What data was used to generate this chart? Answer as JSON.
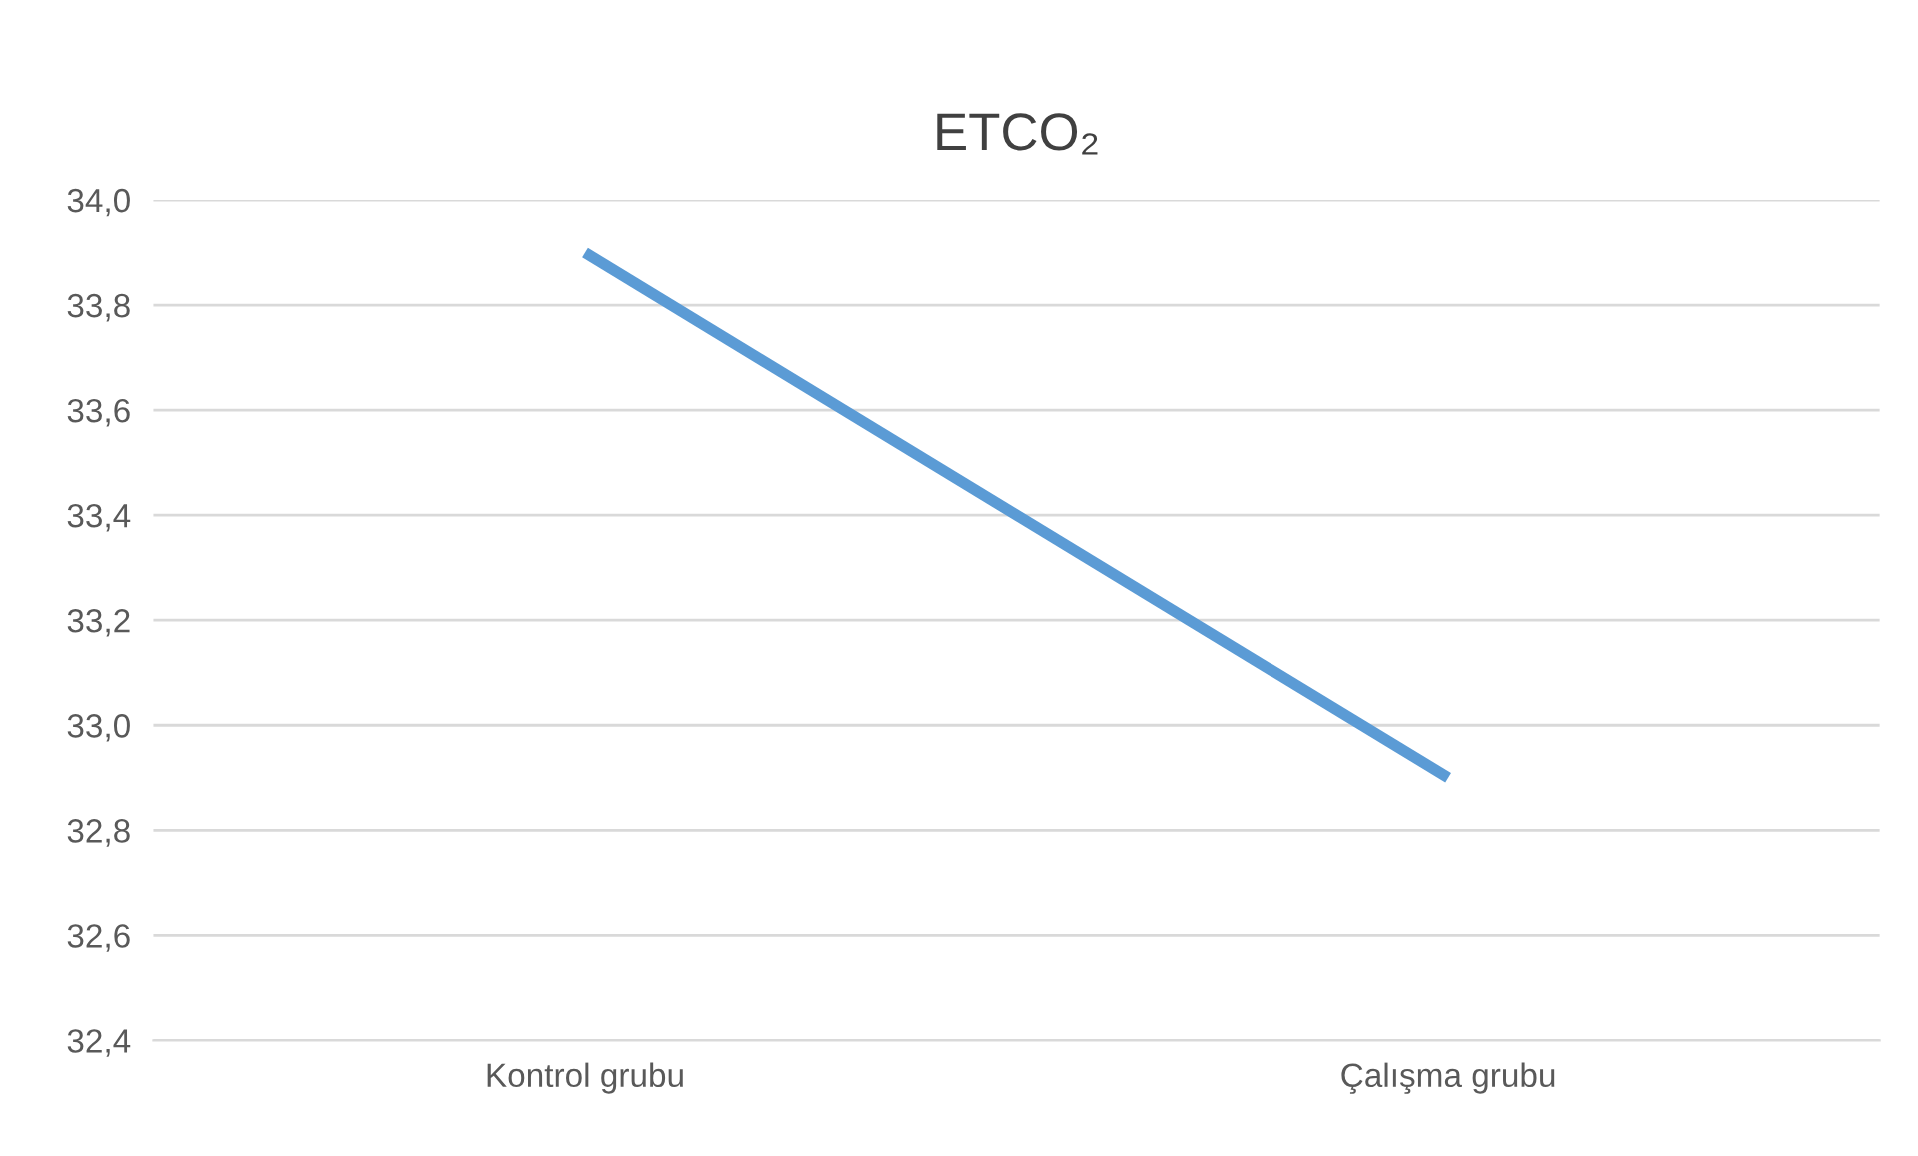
{
  "chart_data": {
    "type": "line",
    "title": "ETCO₂",
    "categories": [
      "Kontrol grubu",
      "Çalışma grubu"
    ],
    "series": [
      {
        "color": "#5b9bd5",
        "values": [
          33.9,
          32.9
        ]
      }
    ],
    "ylim": [
      32.4,
      34.0
    ],
    "yticks": [
      {
        "value": 32.4,
        "label": "32,4"
      },
      {
        "value": 32.6,
        "label": "32,6"
      },
      {
        "value": 32.8,
        "label": "32,8"
      },
      {
        "value": 33.0,
        "label": "33,0"
      },
      {
        "value": 33.2,
        "label": "33,2"
      },
      {
        "value": 33.4,
        "label": "33,4"
      },
      {
        "value": 33.6,
        "label": "33,6"
      },
      {
        "value": 33.8,
        "label": "33,8"
      },
      {
        "value": 34.0,
        "label": "34,0"
      }
    ],
    "grid": "y",
    "marker": "none",
    "line_style": "solid",
    "legend": false
  }
}
